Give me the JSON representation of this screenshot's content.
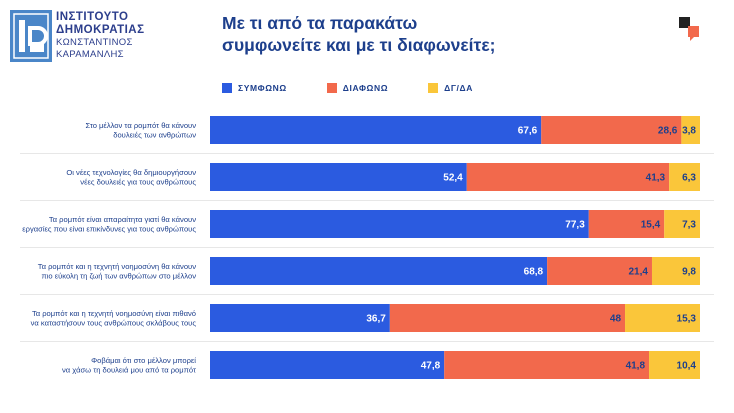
{
  "logo": {
    "line1": "ΙΝΣΤΙΤΟΥΤΟ",
    "line2": "ΔΗΜΟΚΡΑΤΙΑΣ",
    "line3": "ΚΩΝΣΤΑΝΤΙΝΟΣ",
    "line4": "ΚΑΡΑΜΑΝΛΗΣ"
  },
  "title_line1": "Με τι από τα παρακάτω",
  "title_line2": "συμφωνείτε και με τι διαφωνείτε;",
  "colors": {
    "agree": "#2b5be0",
    "disagree": "#f2694c",
    "dkna": "#fac63a",
    "text": "#1d3f8c",
    "divider": "#d0d0d0"
  },
  "chart_data": {
    "type": "bar",
    "orientation": "horizontal",
    "stacked": true,
    "title": "Με τι από τα παρακάτω συμφωνείτε και με τι διαφωνείτε;",
    "xlim": [
      0,
      100
    ],
    "legend_position": "top",
    "categories": [
      [
        "Στο μέλλον τα ρομπότ θα κάνουν",
        "δουλειές των ανθρώπων"
      ],
      [
        "Οι νέες τεχνολογίες θα δημιουργήσουν",
        "νέες δουλειές για τους ανθρώπους"
      ],
      [
        "Τα ρομπότ είναι απαραίτητα γιατί θα κάνουν",
        "εργασίες που είναι επικίνδυνες για τους ανθρώπους"
      ],
      [
        "Τα ρομπότ και η τεχνητή νοημοσύνη θα κάνουν",
        "πιο εύκολη τη ζωή των ανθρώπων στο μέλλον"
      ],
      [
        "Τα ρομπότ και η τεχνητή νοημοσύνη είναι πιθανό",
        "να καταστήσουν τους ανθρώπους σκλάβους τους"
      ],
      [
        "Φοβάμαι ότι στο μέλλον μπορεί",
        "να χάσω τη δουλειά μου από τα ρομπότ"
      ]
    ],
    "series": [
      {
        "name": "ΣΥΜΦΩΝΩ",
        "values": [
          67.6,
          52.4,
          77.3,
          68.8,
          36.7,
          47.8
        ],
        "labels": [
          "67,6",
          "52,4",
          "77,3",
          "68,8",
          "36,7",
          "47,8"
        ]
      },
      {
        "name": "ΔΙΑΦΩΝΩ",
        "values": [
          28.6,
          41.3,
          15.4,
          21.4,
          48,
          41.8
        ],
        "labels": [
          "28,6",
          "41,3",
          "15,4",
          "21,4",
          "48",
          "41,8"
        ]
      },
      {
        "name": "ΔΓ/ΔΑ",
        "values": [
          3.8,
          6.3,
          7.3,
          9.8,
          15.3,
          10.4
        ],
        "labels": [
          "3,8",
          "6,3",
          "7,3",
          "9,8",
          "15,3",
          "10,4"
        ]
      }
    ]
  }
}
